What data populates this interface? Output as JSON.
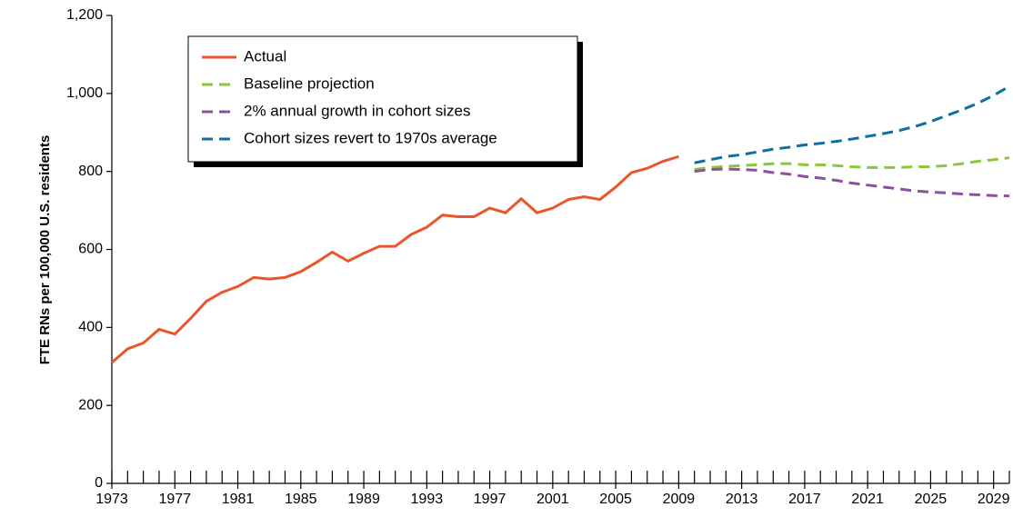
{
  "chart_data": {
    "type": "line",
    "y_label": "FTE RNs per 100,000 U.S. residents",
    "x": [
      1973,
      1974,
      1975,
      1976,
      1977,
      1978,
      1979,
      1980,
      1981,
      1982,
      1983,
      1984,
      1985,
      1986,
      1987,
      1988,
      1989,
      1990,
      1991,
      1992,
      1993,
      1994,
      1995,
      1996,
      1997,
      1998,
      1999,
      2000,
      2001,
      2002,
      2003,
      2004,
      2005,
      2006,
      2007,
      2008,
      2009,
      2010,
      2011,
      2012,
      2013,
      2014,
      2015,
      2016,
      2017,
      2018,
      2019,
      2020,
      2021,
      2022,
      2023,
      2024,
      2025,
      2026,
      2027,
      2028,
      2029,
      2030
    ],
    "xlim": [
      1973,
      2030
    ],
    "xticks": [
      1973,
      1977,
      1981,
      1985,
      1989,
      1993,
      1997,
      2001,
      2005,
      2009,
      2013,
      2017,
      2021,
      2025,
      2029
    ],
    "ylim": [
      0,
      1200
    ],
    "yticks": [
      0,
      200,
      400,
      600,
      800,
      {
        "value": 1000,
        "label": "1,000"
      },
      {
        "value": 1200,
        "label": "1,200"
      }
    ],
    "series": [
      {
        "name": "Actual",
        "color": "#e8562a",
        "dashed": false,
        "values": [
          310,
          345,
          360,
          395,
          383,
          423,
          467,
          490,
          505,
          528,
          524,
          528,
          543,
          567,
          593,
          570,
          590,
          608,
          608,
          638,
          657,
          688,
          684,
          684,
          706,
          694,
          730,
          694,
          706,
          728,
          735,
          728,
          760,
          797,
          808,
          826,
          838,
          null,
          null,
          null,
          null,
          null,
          null,
          null,
          null,
          null,
          null,
          null,
          null,
          null,
          null,
          null,
          null,
          null,
          null,
          null,
          null,
          null
        ]
      },
      {
        "name": "Baseline projection",
        "color": "#8cc63f",
        "dashed": true,
        "values": [
          null,
          null,
          null,
          null,
          null,
          null,
          null,
          null,
          null,
          null,
          null,
          null,
          null,
          null,
          null,
          null,
          null,
          null,
          null,
          null,
          null,
          null,
          null,
          null,
          null,
          null,
          null,
          null,
          null,
          null,
          null,
          null,
          null,
          null,
          null,
          null,
          null,
          805,
          810,
          813,
          815,
          817,
          820,
          820,
          817,
          817,
          815,
          812,
          810,
          810,
          810,
          812,
          812,
          815,
          820,
          826,
          830,
          835
        ]
      },
      {
        "name": "2% annual growth in cohort sizes",
        "color": "#8e4fa0",
        "dashed": true,
        "values": [
          null,
          null,
          null,
          null,
          null,
          null,
          null,
          null,
          null,
          null,
          null,
          null,
          null,
          null,
          null,
          null,
          null,
          null,
          null,
          null,
          null,
          null,
          null,
          null,
          null,
          null,
          null,
          null,
          null,
          null,
          null,
          null,
          null,
          null,
          null,
          null,
          null,
          800,
          805,
          806,
          805,
          803,
          797,
          793,
          787,
          783,
          777,
          770,
          765,
          760,
          755,
          750,
          747,
          745,
          742,
          740,
          738,
          737
        ]
      },
      {
        "name": "Cohort sizes revert to 1970s average",
        "color": "#0e6fa0",
        "dashed": true,
        "values": [
          null,
          null,
          null,
          null,
          null,
          null,
          null,
          null,
          null,
          null,
          null,
          null,
          null,
          null,
          null,
          null,
          null,
          null,
          null,
          null,
          null,
          null,
          null,
          null,
          null,
          null,
          null,
          null,
          null,
          null,
          null,
          null,
          null,
          null,
          null,
          null,
          null,
          822,
          830,
          838,
          843,
          850,
          857,
          862,
          868,
          872,
          877,
          883,
          890,
          897,
          905,
          915,
          928,
          943,
          958,
          975,
          995,
          1018
        ]
      }
    ]
  }
}
